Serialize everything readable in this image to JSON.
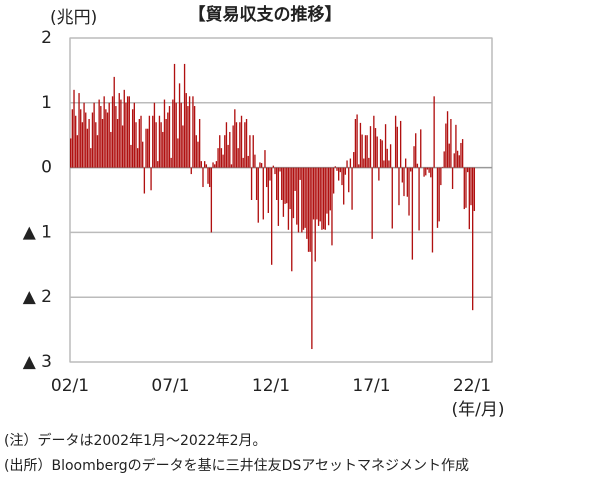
{
  "chart_data": {
    "type": "bar",
    "title": "【貿易収支の推移】",
    "y_unit": "(兆円)",
    "x_unit": "(年/月)",
    "notes": [
      "(注）データは2002年1月～2022年2月。",
      "(出所）Bloombergのデータを基に三井住友DSアセットマネジメント作成"
    ],
    "color": "#b01010",
    "grid": true,
    "ylim": [
      -3,
      2
    ],
    "yticks": [
      2,
      1,
      0,
      {
        "value": -1,
        "label": "▲ 1"
      },
      {
        "value": -2,
        "label": "▲ 2"
      },
      {
        "value": -3,
        "label": "▲ 3"
      }
    ],
    "categories": [
      "02/1",
      null,
      null,
      null,
      null,
      null,
      null,
      null,
      null,
      null,
      null,
      null,
      null,
      null,
      null,
      null,
      null,
      null,
      null,
      null,
      null,
      null,
      null,
      null,
      null,
      null,
      null,
      null,
      null,
      null,
      null,
      null,
      null,
      null,
      null,
      null,
      null,
      null,
      null,
      null,
      null,
      null,
      null,
      null,
      null,
      null,
      null,
      null,
      null,
      null,
      null,
      null,
      null,
      null,
      null,
      null,
      null,
      null,
      null,
      null,
      "07/1",
      null,
      null,
      null,
      null,
      null,
      null,
      null,
      null,
      null,
      null,
      null,
      null,
      null,
      null,
      null,
      null,
      null,
      null,
      null,
      null,
      null,
      null,
      null,
      null,
      null,
      null,
      null,
      null,
      null,
      null,
      null,
      null,
      null,
      null,
      null,
      null,
      null,
      null,
      null,
      null,
      null,
      null,
      null,
      null,
      null,
      null,
      null,
      null,
      null,
      null,
      null,
      null,
      null,
      null,
      null,
      null,
      null,
      null,
      null,
      "12/1",
      null,
      null,
      null,
      null,
      null,
      null,
      null,
      null,
      null,
      null,
      null,
      null,
      null,
      null,
      null,
      null,
      null,
      null,
      null,
      null,
      null,
      null,
      null,
      null,
      null,
      null,
      null,
      null,
      null,
      null,
      null,
      null,
      null,
      null,
      null,
      null,
      null,
      null,
      null,
      null,
      null,
      null,
      null,
      null,
      null,
      null,
      null,
      null,
      null,
      null,
      null,
      null,
      null,
      null,
      null,
      null,
      null,
      null,
      null,
      "17/1",
      null,
      null,
      null,
      null,
      null,
      null,
      null,
      null,
      null,
      null,
      null,
      null,
      null,
      null,
      null,
      null,
      null,
      null,
      null,
      null,
      null,
      null,
      null,
      null,
      null,
      null,
      null,
      null,
      null,
      null,
      null,
      null,
      null,
      null,
      null,
      null,
      null,
      null,
      null,
      null,
      null,
      null,
      null,
      null,
      null,
      null,
      null,
      null,
      null,
      null,
      null,
      null,
      null,
      null,
      null,
      null,
      null,
      null,
      null,
      "22/1",
      null
    ],
    "values": [
      0.45,
      0.9,
      1.2,
      0.8,
      0.5,
      1.15,
      0.9,
      0.7,
      1.0,
      0.85,
      0.6,
      0.75,
      0.3,
      0.85,
      1.0,
      0.7,
      0.5,
      1.05,
      0.95,
      0.75,
      1.1,
      0.9,
      0.85,
      1.0,
      0.55,
      1.1,
      1.4,
      0.95,
      0.75,
      1.15,
      1.05,
      0.65,
      1.2,
      1.0,
      1.1,
      1.1,
      0.35,
      0.9,
      1.0,
      0.7,
      0.3,
      0.75,
      0.8,
      0.4,
      -0.4,
      0.6,
      0.6,
      0.8,
      -0.35,
      0.8,
      1.0,
      0.7,
      0.1,
      0.8,
      0.7,
      0.55,
      1.05,
      0.75,
      0.85,
      0.95,
      0.15,
      1.05,
      1.6,
      1.0,
      0.45,
      1.3,
      1.0,
      0.65,
      1.6,
      1.15,
      0.95,
      1.1,
      -0.1,
      1.1,
      0.95,
      0.5,
      0.4,
      0.75,
      0.1,
      -0.3,
      0.1,
      0.05,
      -0.25,
      -0.3,
      -1.0,
      0.08,
      0.05,
      0.1,
      0.3,
      0.5,
      0.3,
      0.2,
      0.5,
      0.7,
      0.35,
      0.55,
      0.05,
      0.65,
      0.9,
      0.7,
      0.3,
      0.7,
      0.8,
      0.15,
      0.7,
      0.75,
      0.18,
      0.5,
      -0.5,
      0.5,
      0.2,
      -0.5,
      -0.85,
      0.08,
      0.07,
      -0.8,
      0.27,
      -0.3,
      -0.7,
      -0.2,
      -1.5,
      0.03,
      -0.1,
      -0.5,
      -0.9,
      -0.06,
      -0.5,
      -0.76,
      -0.56,
      -0.55,
      -0.96,
      -0.64,
      -1.6,
      -0.78,
      -0.36,
      -0.88,
      -1.0,
      -0.19,
      -1.0,
      -0.96,
      -0.93,
      -1.1,
      -1.3,
      -1.3,
      -2.8,
      -0.8,
      -1.45,
      -0.8,
      -0.9,
      -0.83,
      -0.96,
      -0.95,
      -0.96,
      -0.71,
      -0.89,
      -0.66,
      -1.2,
      -0.4,
      0.02,
      -0.05,
      -0.2,
      -0.07,
      -0.27,
      -0.57,
      -0.11,
      0.11,
      -0.38,
      0.14,
      -0.65,
      0.24,
      0.75,
      0.82,
      0.05,
      0.69,
      0.51,
      0.14,
      0.5,
      0.5,
      0.15,
      0.64,
      -1.1,
      0.8,
      0.61,
      0.48,
      -0.2,
      0.44,
      0.42,
      0.11,
      0.67,
      0.29,
      0.11,
      0.36,
      -0.94,
      0.0,
      0.8,
      0.63,
      -0.58,
      0.72,
      -0.23,
      -0.44,
      0.14,
      -0.45,
      -0.74,
      -0.06,
      -1.42,
      0.33,
      0.53,
      0.06,
      -0.97,
      0.59,
      0.0,
      -0.14,
      -0.12,
      -0.03,
      -0.08,
      -0.15,
      -1.31,
      1.1,
      0.0,
      -0.93,
      -0.83,
      -0.27,
      0.01,
      0.25,
      0.68,
      0.87,
      0.37,
      0.75,
      -0.33,
      0.22,
      0.66,
      0.26,
      0.19,
      0.38,
      0.44,
      -0.64,
      -0.62,
      -0.07,
      -0.95,
      -0.58,
      -2.2,
      -0.67
    ]
  }
}
